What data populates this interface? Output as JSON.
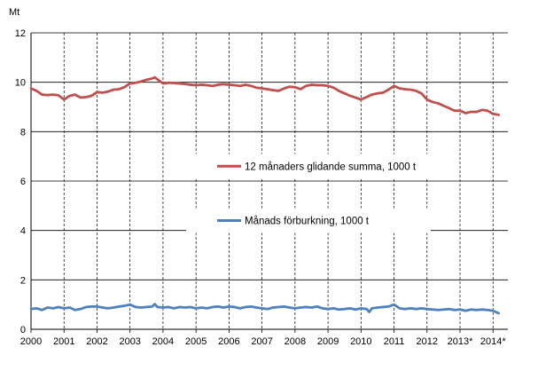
{
  "chart_data": {
    "type": "line",
    "title": "",
    "ylabel": "Mt",
    "xlabel": "",
    "ylim": [
      0,
      12
    ],
    "yticks": [
      0,
      2,
      4,
      6,
      8,
      10,
      12
    ],
    "xlim": [
      2000,
      2014.45
    ],
    "x_tick_labels": [
      {
        "x": 2000,
        "label": "2000"
      },
      {
        "x": 2001,
        "label": "2001"
      },
      {
        "x": 2002,
        "label": "2002"
      },
      {
        "x": 2003,
        "label": "2003"
      },
      {
        "x": 2004,
        "label": "2004"
      },
      {
        "x": 2005,
        "label": "2005"
      },
      {
        "x": 2006,
        "label": "2006"
      },
      {
        "x": 2007,
        "label": "2007"
      },
      {
        "x": 2008,
        "label": "2008"
      },
      {
        "x": 2009,
        "label": "2009"
      },
      {
        "x": 2010,
        "label": "2010"
      },
      {
        "x": 2011,
        "label": "2011"
      },
      {
        "x": 2012,
        "label": "2012"
      },
      {
        "x": 2013,
        "label": "2013*"
      },
      {
        "x": 2014,
        "label": "2014*"
      }
    ],
    "grid": {
      "horizontal": "solid",
      "vertical": "dashed"
    },
    "legend_placement": "center-right",
    "series": [
      {
        "name": "12 månaders glidande summa, 1000 t",
        "color": "#c0504d",
        "points": [
          [
            2000.0,
            9.75
          ],
          [
            2000.17,
            9.65
          ],
          [
            2000.33,
            9.5
          ],
          [
            2000.5,
            9.48
          ],
          [
            2000.67,
            9.5
          ],
          [
            2000.83,
            9.47
          ],
          [
            2001.0,
            9.3
          ],
          [
            2001.17,
            9.45
          ],
          [
            2001.33,
            9.5
          ],
          [
            2001.5,
            9.38
          ],
          [
            2001.67,
            9.4
          ],
          [
            2001.83,
            9.45
          ],
          [
            2002.0,
            9.6
          ],
          [
            2002.17,
            9.58
          ],
          [
            2002.33,
            9.62
          ],
          [
            2002.5,
            9.7
          ],
          [
            2002.67,
            9.72
          ],
          [
            2002.83,
            9.8
          ],
          [
            2003.0,
            9.95
          ],
          [
            2003.17,
            9.98
          ],
          [
            2003.33,
            10.03
          ],
          [
            2003.5,
            10.1
          ],
          [
            2003.67,
            10.15
          ],
          [
            2003.75,
            10.2
          ],
          [
            2003.83,
            10.12
          ],
          [
            2004.0,
            9.95
          ],
          [
            2004.17,
            9.98
          ],
          [
            2004.33,
            9.97
          ],
          [
            2004.5,
            9.95
          ],
          [
            2004.67,
            9.93
          ],
          [
            2004.83,
            9.9
          ],
          [
            2005.0,
            9.88
          ],
          [
            2005.17,
            9.9
          ],
          [
            2005.33,
            9.88
          ],
          [
            2005.5,
            9.85
          ],
          [
            2005.67,
            9.9
          ],
          [
            2005.83,
            9.92
          ],
          [
            2006.0,
            9.9
          ],
          [
            2006.17,
            9.88
          ],
          [
            2006.33,
            9.85
          ],
          [
            2006.5,
            9.9
          ],
          [
            2006.67,
            9.85
          ],
          [
            2006.83,
            9.78
          ],
          [
            2007.0,
            9.75
          ],
          [
            2007.17,
            9.72
          ],
          [
            2007.33,
            9.68
          ],
          [
            2007.5,
            9.65
          ],
          [
            2007.67,
            9.75
          ],
          [
            2007.83,
            9.82
          ],
          [
            2008.0,
            9.8
          ],
          [
            2008.17,
            9.72
          ],
          [
            2008.33,
            9.85
          ],
          [
            2008.5,
            9.9
          ],
          [
            2008.67,
            9.88
          ],
          [
            2008.83,
            9.88
          ],
          [
            2009.0,
            9.85
          ],
          [
            2009.17,
            9.78
          ],
          [
            2009.33,
            9.65
          ],
          [
            2009.5,
            9.55
          ],
          [
            2009.67,
            9.45
          ],
          [
            2009.83,
            9.38
          ],
          [
            2010.0,
            9.3
          ],
          [
            2010.17,
            9.4
          ],
          [
            2010.33,
            9.5
          ],
          [
            2010.5,
            9.55
          ],
          [
            2010.67,
            9.58
          ],
          [
            2010.83,
            9.7
          ],
          [
            2011.0,
            9.85
          ],
          [
            2011.17,
            9.75
          ],
          [
            2011.33,
            9.72
          ],
          [
            2011.5,
            9.7
          ],
          [
            2011.67,
            9.65
          ],
          [
            2011.83,
            9.55
          ],
          [
            2012.0,
            9.3
          ],
          [
            2012.17,
            9.2
          ],
          [
            2012.33,
            9.15
          ],
          [
            2012.5,
            9.05
          ],
          [
            2012.67,
            8.95
          ],
          [
            2012.83,
            8.85
          ],
          [
            2013.0,
            8.85
          ],
          [
            2013.17,
            8.75
          ],
          [
            2013.33,
            8.8
          ],
          [
            2013.5,
            8.8
          ],
          [
            2013.67,
            8.88
          ],
          [
            2013.83,
            8.85
          ],
          [
            2014.0,
            8.72
          ],
          [
            2014.17,
            8.68
          ]
        ]
      },
      {
        "name": "Månads förburkning, 1000 t",
        "color": "#4f81bd",
        "points": [
          [
            2000.0,
            0.82
          ],
          [
            2000.17,
            0.85
          ],
          [
            2000.33,
            0.78
          ],
          [
            2000.5,
            0.88
          ],
          [
            2000.67,
            0.85
          ],
          [
            2000.83,
            0.9
          ],
          [
            2001.0,
            0.85
          ],
          [
            2001.17,
            0.88
          ],
          [
            2001.33,
            0.78
          ],
          [
            2001.5,
            0.82
          ],
          [
            2001.67,
            0.9
          ],
          [
            2001.83,
            0.92
          ],
          [
            2002.0,
            0.92
          ],
          [
            2002.17,
            0.88
          ],
          [
            2002.33,
            0.85
          ],
          [
            2002.5,
            0.88
          ],
          [
            2002.67,
            0.92
          ],
          [
            2002.83,
            0.95
          ],
          [
            2003.0,
            1.0
          ],
          [
            2003.17,
            0.9
          ],
          [
            2003.33,
            0.88
          ],
          [
            2003.5,
            0.9
          ],
          [
            2003.67,
            0.92
          ],
          [
            2003.75,
            1.02
          ],
          [
            2003.83,
            0.9
          ],
          [
            2004.0,
            0.88
          ],
          [
            2004.17,
            0.9
          ],
          [
            2004.33,
            0.85
          ],
          [
            2004.5,
            0.9
          ],
          [
            2004.67,
            0.88
          ],
          [
            2004.83,
            0.9
          ],
          [
            2005.0,
            0.85
          ],
          [
            2005.17,
            0.88
          ],
          [
            2005.33,
            0.85
          ],
          [
            2005.5,
            0.9
          ],
          [
            2005.67,
            0.92
          ],
          [
            2005.83,
            0.88
          ],
          [
            2006.0,
            0.92
          ],
          [
            2006.17,
            0.9
          ],
          [
            2006.33,
            0.85
          ],
          [
            2006.5,
            0.9
          ],
          [
            2006.67,
            0.92
          ],
          [
            2006.83,
            0.88
          ],
          [
            2007.0,
            0.85
          ],
          [
            2007.17,
            0.82
          ],
          [
            2007.33,
            0.88
          ],
          [
            2007.5,
            0.9
          ],
          [
            2007.67,
            0.92
          ],
          [
            2007.83,
            0.88
          ],
          [
            2008.0,
            0.85
          ],
          [
            2008.17,
            0.88
          ],
          [
            2008.33,
            0.9
          ],
          [
            2008.5,
            0.88
          ],
          [
            2008.67,
            0.92
          ],
          [
            2008.83,
            0.85
          ],
          [
            2009.0,
            0.82
          ],
          [
            2009.17,
            0.85
          ],
          [
            2009.33,
            0.8
          ],
          [
            2009.5,
            0.82
          ],
          [
            2009.67,
            0.85
          ],
          [
            2009.83,
            0.8
          ],
          [
            2010.0,
            0.85
          ],
          [
            2010.17,
            0.82
          ],
          [
            2010.25,
            0.7
          ],
          [
            2010.33,
            0.85
          ],
          [
            2010.5,
            0.88
          ],
          [
            2010.67,
            0.9
          ],
          [
            2010.83,
            0.92
          ],
          [
            2011.0,
            1.0
          ],
          [
            2011.17,
            0.85
          ],
          [
            2011.33,
            0.82
          ],
          [
            2011.5,
            0.85
          ],
          [
            2011.67,
            0.82
          ],
          [
            2011.83,
            0.85
          ],
          [
            2012.0,
            0.82
          ],
          [
            2012.17,
            0.8
          ],
          [
            2012.33,
            0.78
          ],
          [
            2012.5,
            0.8
          ],
          [
            2012.67,
            0.82
          ],
          [
            2012.83,
            0.78
          ],
          [
            2013.0,
            0.8
          ],
          [
            2013.17,
            0.75
          ],
          [
            2013.33,
            0.8
          ],
          [
            2013.5,
            0.78
          ],
          [
            2013.67,
            0.8
          ],
          [
            2013.83,
            0.78
          ],
          [
            2014.0,
            0.75
          ],
          [
            2014.17,
            0.65
          ]
        ]
      }
    ]
  }
}
